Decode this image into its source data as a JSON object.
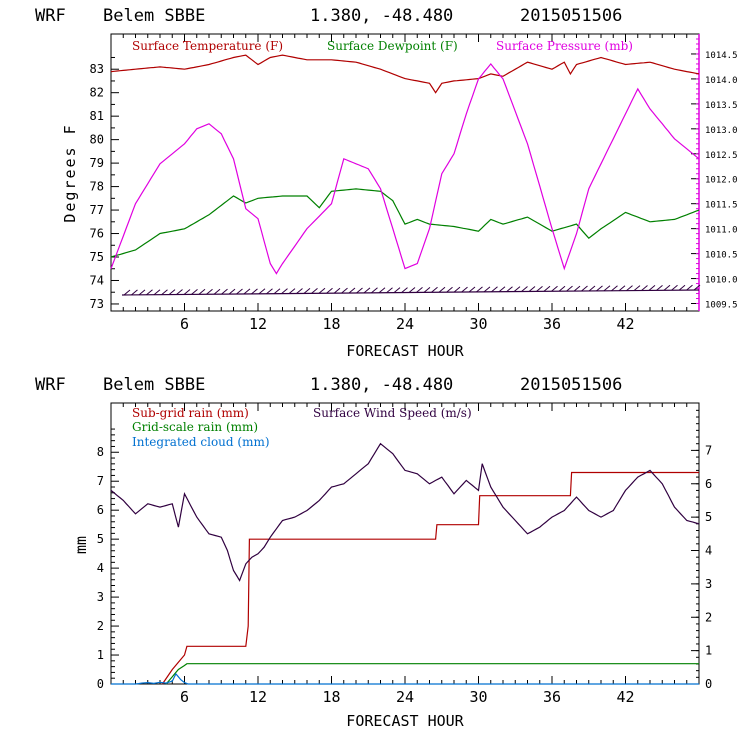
{
  "charts": [
    {
      "header": {
        "model": "WRF",
        "station": "Belem SBBE",
        "coords": "1.380, -48.480",
        "init": "2015051506"
      },
      "xlabel": "FORECAST HOUR",
      "ylabel_left": "Degrees F",
      "x_ticks": [
        "6",
        "12",
        "18",
        "24",
        "30",
        "36",
        "42"
      ],
      "y_left_ticks": [
        "73",
        "74",
        "75",
        "76",
        "77",
        "78",
        "79",
        "80",
        "81",
        "82",
        "83"
      ],
      "y_right_ticks": [
        "1009.5",
        "1010.0",
        "1010.5",
        "1011.0",
        "1011.5",
        "1012.0",
        "1012.5",
        "1013.0",
        "1013.5",
        "1014.0",
        "1014.5"
      ],
      "legend": [
        {
          "label": "Surface Temperature (F)",
          "color": "#b00000"
        },
        {
          "label": "Surface Dewpoint (F)",
          "color": "#008000"
        },
        {
          "label": "Surface Pressure (mb)",
          "color": "#e000e0"
        }
      ]
    },
    {
      "header": {
        "model": "WRF",
        "station": "Belem SBBE",
        "coords": "1.380, -48.480",
        "init": "2015051506"
      },
      "xlabel": "FORECAST HOUR",
      "ylabel_left": "mm",
      "x_ticks": [
        "6",
        "12",
        "18",
        "24",
        "30",
        "36",
        "42"
      ],
      "y_left_ticks": [
        "0",
        "1",
        "2",
        "3",
        "4",
        "5",
        "6",
        "7",
        "8"
      ],
      "y_right_ticks": [
        "0",
        "1",
        "2",
        "3",
        "4",
        "5",
        "6",
        "7"
      ],
      "legend": [
        {
          "label": "Sub-grid rain (mm)",
          "color": "#b00000"
        },
        {
          "label": "Grid-scale rain (mm)",
          "color": "#008000"
        },
        {
          "label": "Integrated cloud (mm)",
          "color": "#0070d0"
        },
        {
          "label": "Surface Wind Speed (m/s)",
          "color": "#300040"
        }
      ]
    }
  ],
  "chart_data": [
    {
      "type": "line",
      "xlim": [
        0,
        48
      ],
      "ylim_left": [
        72.7,
        84.5
      ],
      "ylim_right": [
        1009.35,
        1014.9
      ],
      "series": [
        {
          "name": "Surface Temperature (F)",
          "axis": "left",
          "color": "#b00000",
          "x": [
            0,
            2,
            4,
            6,
            8,
            10,
            11,
            12,
            13,
            14,
            16,
            18,
            20,
            22,
            24,
            26,
            26.5,
            27,
            28,
            30,
            31,
            32,
            34,
            36,
            37,
            37.5,
            38,
            40,
            42,
            44,
            46,
            48
          ],
          "y": [
            82.9,
            83.0,
            83.1,
            83.0,
            83.2,
            83.5,
            83.6,
            83.2,
            83.5,
            83.6,
            83.4,
            83.4,
            83.3,
            83.0,
            82.6,
            82.4,
            82.0,
            82.4,
            82.5,
            82.6,
            82.8,
            82.7,
            83.3,
            83.0,
            83.3,
            82.8,
            83.2,
            83.5,
            83.2,
            83.3,
            83.0,
            82.8
          ]
        },
        {
          "name": "Surface Dewpoint (F)",
          "axis": "left",
          "color": "#008000",
          "x": [
            0,
            2,
            4,
            6,
            8,
            10,
            11,
            12,
            14,
            16,
            17,
            18,
            20,
            22,
            23,
            24,
            25,
            26,
            28,
            30,
            31,
            32,
            34,
            36,
            38,
            39,
            40,
            42,
            44,
            46,
            48
          ],
          "y": [
            75.0,
            75.3,
            76.0,
            76.2,
            76.8,
            77.6,
            77.3,
            77.5,
            77.6,
            77.6,
            77.1,
            77.8,
            77.9,
            77.8,
            77.4,
            76.4,
            76.6,
            76.4,
            76.3,
            76.1,
            76.6,
            76.4,
            76.7,
            76.1,
            76.4,
            75.8,
            76.2,
            76.9,
            76.5,
            76.6,
            77.0
          ]
        },
        {
          "name": "Surface Pressure (mb)",
          "axis": "right",
          "color": "#e000e0",
          "x": [
            0,
            2,
            4,
            6,
            7,
            8,
            9,
            10,
            11,
            12,
            13,
            13.5,
            14,
            16,
            18,
            19,
            20,
            21,
            22,
            24,
            25,
            26,
            27,
            28,
            29,
            30,
            31,
            32,
            34,
            36,
            37,
            38,
            39,
            40,
            42,
            43,
            44,
            46,
            48
          ],
          "y": [
            1010.2,
            1011.5,
            1012.3,
            1012.7,
            1013.0,
            1013.1,
            1012.9,
            1012.4,
            1011.4,
            1011.2,
            1010.3,
            1010.1,
            1010.3,
            1011.0,
            1011.5,
            1012.4,
            1012.3,
            1012.2,
            1011.8,
            1010.2,
            1010.3,
            1011.0,
            1012.1,
            1012.5,
            1013.3,
            1014.0,
            1014.3,
            1014.0,
            1012.7,
            1011.0,
            1010.2,
            1010.9,
            1011.8,
            1012.3,
            1013.3,
            1013.8,
            1013.4,
            1012.8,
            1012.4
          ]
        }
      ]
    },
    {
      "type": "line",
      "xlim": [
        0,
        48
      ],
      "ylim_left": [
        0,
        9.7
      ],
      "ylim_right": [
        0,
        8.42
      ],
      "series": [
        {
          "name": "Sub-grid rain (mm)",
          "axis": "left",
          "color": "#b00000",
          "step": true,
          "x": [
            4.2,
            5,
            6,
            6.2,
            11,
            11.2,
            11.3,
            26.5,
            26.6,
            30,
            30.1,
            37.5,
            37.6,
            48
          ],
          "y": [
            0,
            0.5,
            1.0,
            1.3,
            1.3,
            2.0,
            5.0,
            5.0,
            5.5,
            5.5,
            6.5,
            6.5,
            7.3,
            7.3
          ]
        },
        {
          "name": "Grid-scale rain (mm)",
          "axis": "left",
          "color": "#008000",
          "x": [
            4.5,
            5.5,
            6.2,
            48
          ],
          "y": [
            0,
            0.5,
            0.7,
            0.7
          ]
        },
        {
          "name": "Integrated cloud (mm)",
          "axis": "left",
          "color": "#0070d0",
          "x": [
            0,
            2,
            2.5,
            3,
            3.5,
            4,
            4.5,
            5,
            5.3,
            5.7,
            6,
            6.3,
            7,
            48
          ],
          "y": [
            0,
            0,
            0.03,
            0.05,
            0.02,
            0.06,
            0.03,
            0.1,
            0.35,
            0.15,
            0.05,
            0,
            0,
            0
          ]
        },
        {
          "name": "Surface Wind Speed (m/s)",
          "axis": "right",
          "color": "#300040",
          "x": [
            0,
            1,
            2,
            3,
            4,
            5,
            5.5,
            6,
            7,
            8,
            9,
            9.5,
            10,
            10.5,
            11,
            11.5,
            12,
            12.5,
            13,
            14,
            15,
            16,
            17,
            18,
            19,
            20,
            21,
            22,
            23,
            24,
            25,
            26,
            27,
            28,
            29,
            30,
            30.3,
            31,
            32,
            33,
            34,
            35,
            36,
            37,
            38,
            39,
            40,
            41,
            42,
            43,
            44,
            45,
            46,
            47,
            48
          ],
          "y": [
            5.8,
            5.5,
            5.1,
            5.4,
            5.3,
            5.4,
            4.7,
            5.7,
            5.0,
            4.5,
            4.4,
            4.0,
            3.4,
            3.1,
            3.6,
            3.8,
            3.9,
            4.1,
            4.4,
            4.9,
            5.0,
            5.2,
            5.5,
            5.9,
            6.0,
            6.3,
            6.6,
            7.2,
            6.9,
            6.4,
            6.3,
            6.0,
            6.2,
            5.7,
            6.1,
            5.8,
            6.6,
            5.9,
            5.3,
            4.9,
            4.5,
            4.7,
            5.0,
            5.2,
            5.6,
            5.2,
            5.0,
            5.2,
            5.8,
            6.2,
            6.4,
            6.0,
            5.3,
            4.9,
            4.8
          ]
        }
      ]
    }
  ]
}
